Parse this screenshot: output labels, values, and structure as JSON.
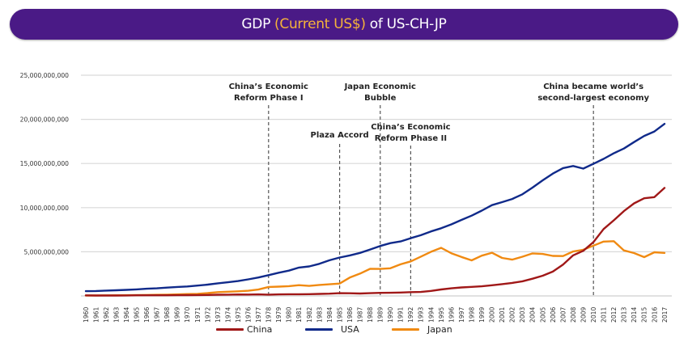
{
  "title": {
    "prefix": "GDP",
    "highlight": "(Current US$)",
    "suffix": "of US-CH-JP"
  },
  "chart_data": {
    "type": "line",
    "title": "GDP (Current US$) of US-CH-JP",
    "xlabel": "",
    "ylabel": "",
    "ylim": [
      0,
      25000000000
    ],
    "yticks": [
      0,
      5000000000,
      10000000000,
      15000000000,
      20000000000,
      25000000000
    ],
    "ytick_labels": [
      "",
      "5,000,000,000",
      "10,000,000,000",
      "15,000,000,000",
      "20,000,000,000",
      "25,000,000,000"
    ],
    "grid": true,
    "legend_position": "bottom",
    "x": [
      1960,
      1961,
      1962,
      1963,
      1964,
      1965,
      1966,
      1967,
      1968,
      1969,
      1970,
      1971,
      1972,
      1973,
      1974,
      1975,
      1976,
      1977,
      1978,
      1979,
      1980,
      1981,
      1982,
      1983,
      1984,
      1985,
      1986,
      1987,
      1988,
      1989,
      1990,
      1991,
      1992,
      1993,
      1994,
      1995,
      1996,
      1997,
      1998,
      1999,
      2000,
      2001,
      2002,
      2003,
      2004,
      2005,
      2006,
      2007,
      2008,
      2009,
      2010,
      2011,
      2012,
      2013,
      2014,
      2015,
      2016,
      2017
    ],
    "series": [
      {
        "name": "China",
        "color": "#a01818",
        "values": [
          60000000,
          50000000,
          47000000,
          50000000,
          59000000,
          70000000,
          77000000,
          72000000,
          70000000,
          79000000,
          93000000,
          100000000,
          114000000,
          138000000,
          144000000,
          163000000,
          154000000,
          175000000,
          150000000,
          178000000,
          191000000,
          196000000,
          205000000,
          230000000,
          260000000,
          309000000,
          301000000,
          273000000,
          312000000,
          348000000,
          361000000,
          383000000,
          427000000,
          445000000,
          564000000,
          734000000,
          864000000,
          962000000,
          1029000000,
          1094000000,
          1211000000,
          1339000000,
          1471000000,
          1660000000,
          1955000000,
          2286000000,
          2752000000,
          3552000000,
          4598000000,
          5110000000,
          6101000000,
          7573000000,
          8560000000,
          9607000000,
          10482000000,
          11065000000,
          11191000000,
          12238000000
        ]
      },
      {
        "name": "USA",
        "color": "#102a8a",
        "values": [
          543000000,
          563000000,
          605000000,
          638000000,
          686000000,
          744000000,
          815000000,
          862000000,
          942000000,
          1019000000,
          1075000000,
          1168000000,
          1282000000,
          1429000000,
          1549000000,
          1689000000,
          1878000000,
          2086000000,
          2357000000,
          2632000000,
          2863000000,
          3211000000,
          3345000000,
          3638000000,
          4041000000,
          4347000000,
          4590000000,
          4870000000,
          5253000000,
          5658000000,
          5980000000,
          6174000000,
          6539000000,
          6879000000,
          7309000000,
          7664000000,
          8100000000,
          8609000000,
          9089000000,
          9661000000,
          10285000000,
          10622000000,
          10978000000,
          11511000000,
          12275000000,
          13094000000,
          13856000000,
          14478000000,
          14719000000,
          14419000000,
          14964000000,
          15518000000,
          16155000000,
          16692000000,
          17428000000,
          18121000000,
          18625000000,
          19485000000
        ]
      },
      {
        "name": "Japan",
        "color": "#f08a12",
        "values": [
          44000000,
          54000000,
          61000000,
          70000000,
          82000000,
          91000000,
          106000000,
          124000000,
          147000000,
          172000000,
          212000000,
          240000000,
          318000000,
          432000000,
          480000000,
          521000000,
          586000000,
          721000000,
          1014000000,
          1055000000,
          1105000000,
          1218000000,
          1135000000,
          1244000000,
          1318000000,
          1399000000,
          2078000000,
          2532000000,
          3072000000,
          3055000000,
          3133000000,
          3585000000,
          3909000000,
          4454000000,
          4999000000,
          5449000000,
          4834000000,
          4415000000,
          4033000000,
          4562000000,
          4888000000,
          4304000000,
          4115000000,
          4445000000,
          4815000000,
          4755000000,
          4530000000,
          4515000000,
          5038000000,
          5231000000,
          5700000000,
          6157000000,
          6203000000,
          5156000000,
          4850000000,
          4395000000,
          4949000000,
          4872000000
        ]
      }
    ],
    "annotations": [
      {
        "year": 1978,
        "lines": [
          "China’s Economic",
          "Reform Phase I"
        ]
      },
      {
        "year": 1985,
        "lines": [
          "Plaza Accord"
        ]
      },
      {
        "year": 1989,
        "lines": [
          "Japan Economic",
          "Bubble"
        ]
      },
      {
        "year": 1992,
        "lines": [
          "China’s Economic",
          "Reform Phase II"
        ]
      },
      {
        "year": 2010,
        "lines": [
          "China became world’s",
          "second-largest economy"
        ]
      }
    ]
  },
  "legend": [
    {
      "label": "China",
      "color": "#a01818"
    },
    {
      "label": "USA",
      "color": "#102a8a"
    },
    {
      "label": "Japan",
      "color": "#f08a12"
    }
  ]
}
